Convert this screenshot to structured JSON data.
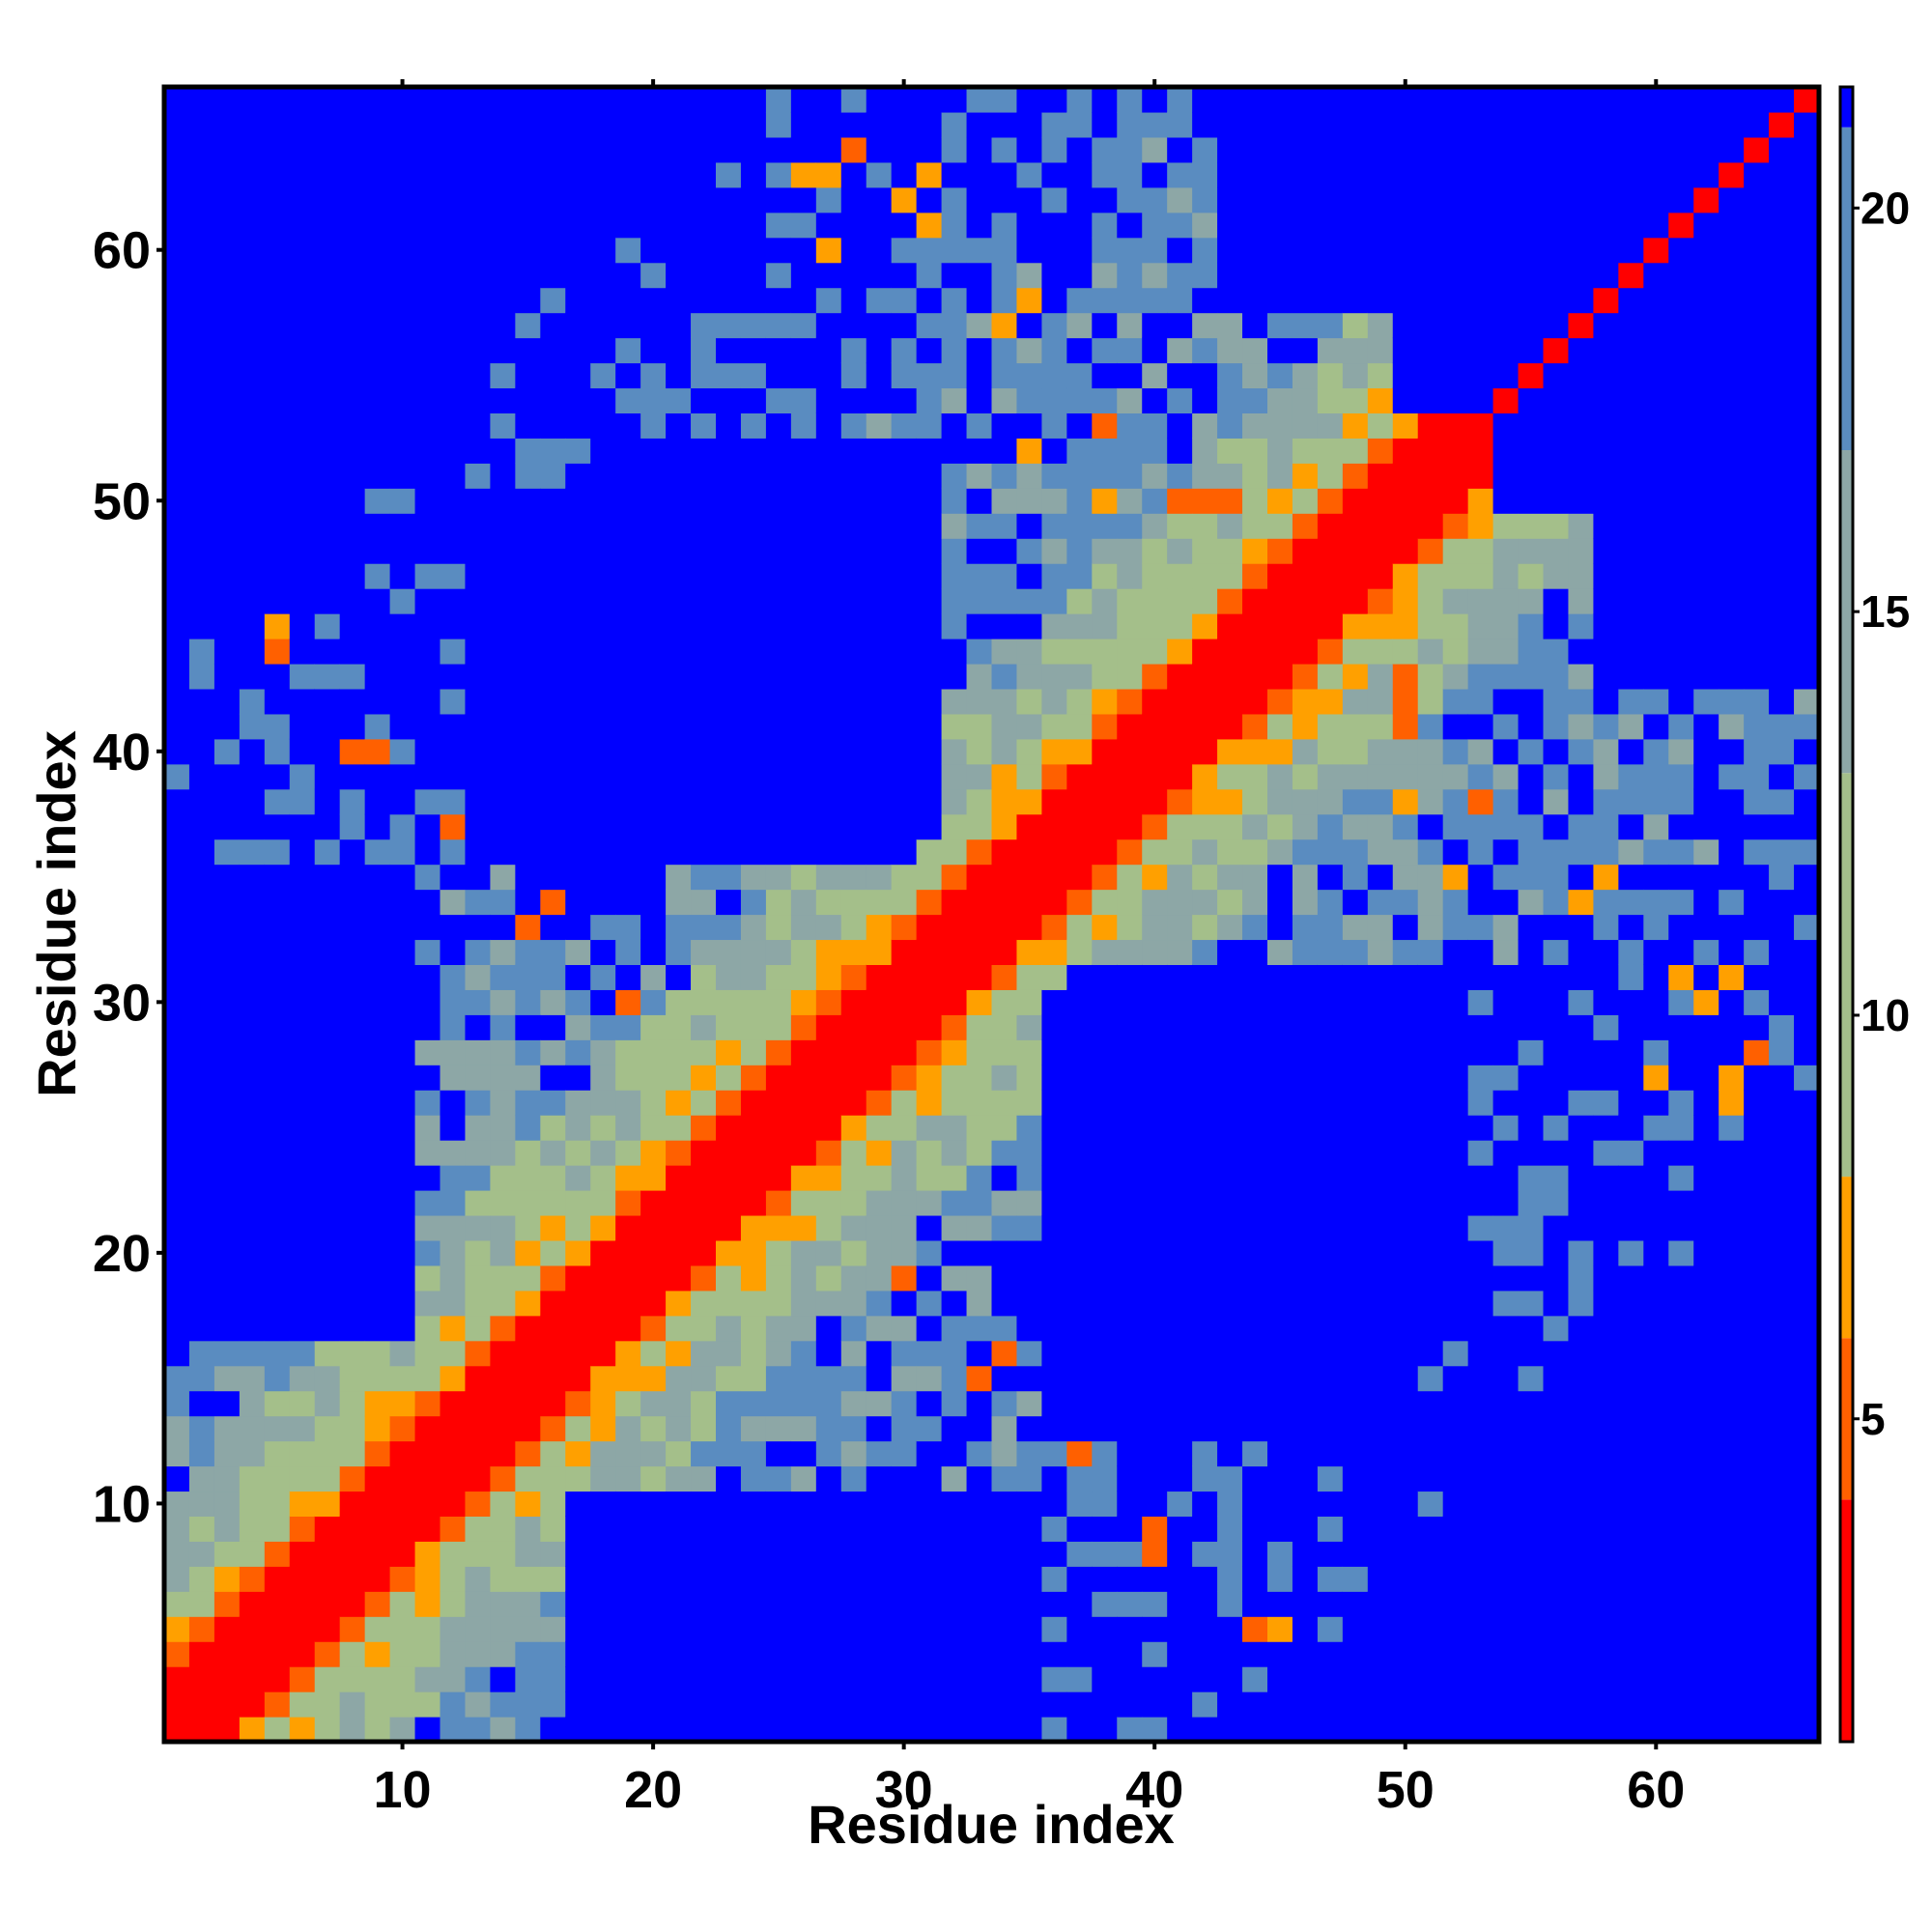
{
  "chart_data": {
    "type": "heatmap",
    "title": "",
    "xlabel": "Residue index",
    "ylabel": "Residue index",
    "n_residues": 66,
    "xlim": [
      1,
      66
    ],
    "ylim": [
      1,
      66
    ],
    "x_ticks": [
      10,
      20,
      30,
      40,
      50,
      60
    ],
    "y_ticks": [
      10,
      20,
      30,
      40,
      50,
      60
    ],
    "x_tick_labels": [
      "10",
      "20",
      "30",
      "40",
      "50",
      "60"
    ],
    "y_tick_labels": [
      "10",
      "20",
      "30",
      "40",
      "50",
      "60"
    ],
    "colorbar": {
      "ticks": [
        5,
        10,
        15,
        20
      ],
      "tick_labels": [
        "5",
        "10",
        "15",
        "20"
      ],
      "range": [
        1,
        21.5
      ],
      "bands": [
        {
          "from": 1,
          "to": 4,
          "color": "#ff0000"
        },
        {
          "from": 4,
          "to": 6,
          "color": "#ff6000"
        },
        {
          "from": 6,
          "to": 8,
          "color": "#ffa000"
        },
        {
          "from": 8,
          "to": 13,
          "color": "#a4bf8a"
        },
        {
          "from": 13,
          "to": 17,
          "color": "#8da7a6"
        },
        {
          "from": 17,
          "to": 21,
          "color": "#5a8cc0"
        },
        {
          "from": 21,
          "to": 21.5,
          "color": "#0000ff"
        }
      ]
    },
    "cutoff": 21,
    "blue_regions": [
      {
        "x": [
          19,
          31
        ],
        "y": [
          37,
          52
        ]
      },
      {
        "x": [
          36,
          50
        ],
        "y": [
          13,
          30
        ]
      },
      {
        "x": [
          1,
          10
        ],
        "y": [
          17,
          35
        ]
      },
      {
        "x": [
          21,
          33
        ],
        "y": [
          1,
          10
        ]
      },
      {
        "x": [
          1,
          12
        ],
        "y": [
          52,
          66
        ]
      },
      {
        "x": [
          50,
          66
        ],
        "y": [
          54,
          66
        ]
      },
      {
        "x": [
          57,
          66
        ],
        "y": [
          1,
          12
        ]
      },
      {
        "x": [
          58,
          66
        ],
        "y": [
          43,
          52
        ]
      }
    ],
    "contact_islands": [
      {
        "x": 26,
        "y": 63,
        "value": 6
      },
      {
        "x": 27,
        "y": 63,
        "value": 6
      },
      {
        "x": 31,
        "y": 63,
        "value": 7
      },
      {
        "x": 34,
        "y": 57,
        "value": 6
      },
      {
        "x": 35,
        "y": 52,
        "value": 7
      },
      {
        "x": 38,
        "y": 53,
        "value": 5
      },
      {
        "x": 38,
        "y": 50,
        "value": 7
      },
      {
        "x": 42,
        "y": 50,
        "value": 5
      },
      {
        "x": 43,
        "y": 50,
        "value": 5
      },
      {
        "x": 45,
        "y": 50,
        "value": 7
      },
      {
        "x": 50,
        "y": 41,
        "value": 5
      },
      {
        "x": 53,
        "y": 38,
        "value": 5
      },
      {
        "x": 58,
        "y": 35,
        "value": 6
      },
      {
        "x": 61,
        "y": 31,
        "value": 6
      },
      {
        "x": 64,
        "y": 28,
        "value": 5
      },
      {
        "x": 5,
        "y": 45,
        "value": 6
      },
      {
        "x": 8,
        "y": 40,
        "value": 5
      },
      {
        "x": 12,
        "y": 37,
        "value": 5
      },
      {
        "x": 15,
        "y": 33,
        "value": 5
      },
      {
        "x": 19,
        "y": 30,
        "value": 6
      },
      {
        "x": 20,
        "y": 24,
        "value": 7
      },
      {
        "x": 30,
        "y": 19,
        "value": 5
      },
      {
        "x": 34,
        "y": 16,
        "value": 5
      },
      {
        "x": 37,
        "y": 12,
        "value": 5
      },
      {
        "x": 40,
        "y": 9,
        "value": 5
      },
      {
        "x": 44,
        "y": 5,
        "value": 5
      },
      {
        "x": 62,
        "y": 30,
        "value": 6
      },
      {
        "x": 60,
        "y": 27,
        "value": 6
      }
    ]
  }
}
